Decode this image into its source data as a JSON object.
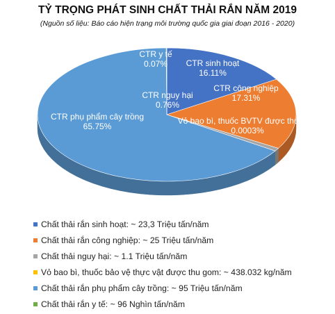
{
  "chart_data": {
    "type": "pie",
    "title": "TỶ TRỌNG PHÁT SINH CHẤT THẢI RẮN NĂM 2019",
    "subtitle": "(Nguồn số liệu: Báo cáo hiện trạng môi trường quốc gia giai đoạn 2016 - 2020)",
    "legend_position": "bottom",
    "slices": [
      {
        "label": "CTR sinh hoạt",
        "value": 16.11,
        "value_label": "16.11%",
        "color": "#4472C4"
      },
      {
        "label": "CTR công nghiệp",
        "value": 17.31,
        "value_label": "17.31%",
        "color": "#ED7D31"
      },
      {
        "label": "CTR nguy hại",
        "value": 0.76,
        "value_label": "0.76%",
        "color": "#A5A5A5"
      },
      {
        "label": "Vỏ bao bì, thuốc BVTV được thu gom",
        "value": 0.0003,
        "value_label": "0.0003%",
        "color": "#FFC000"
      },
      {
        "label": "CTR phụ phẩm cây trồng",
        "value": 65.75,
        "value_label": "65.75%",
        "color": "#5B9BD5"
      },
      {
        "label": "CTR y tế",
        "value": 0.07,
        "value_label": "0.07%",
        "color": "#70AD47"
      }
    ],
    "legend": [
      "Chất thải rắn sinh hoạt: ~ 23,3 Triệu tấn/năm",
      "Chất thải rắn công nghiệp: ~ 25 Triệu tấn/năm",
      "Chất thải nguy hại: ~ 1.1 Triệu tấn/năm",
      "Vỏ bao bì, thuốc bảo vệ thực vật được thu gom: ~ 438.032 kg/năm",
      "Chất thải rắn phụ phẩm cây trồng: ~ 95 Triệu tấn/năm",
      "Chất thải rắn y tế: ~ 96 Nghìn tấn/năm"
    ]
  }
}
